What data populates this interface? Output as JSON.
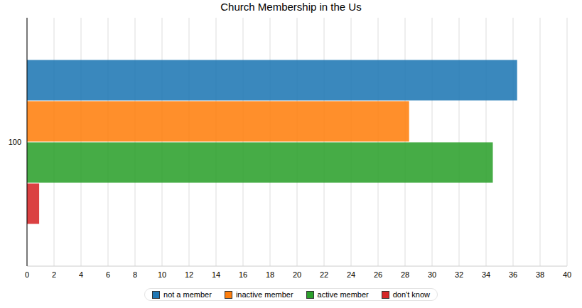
{
  "chart_data": {
    "type": "bar",
    "title": "Church Membership in the Us",
    "orientation": "horizontal",
    "categories": [
      "100"
    ],
    "series": [
      {
        "name": "not a member",
        "color": "#1f77b4",
        "values": [
          36.3
        ]
      },
      {
        "name": "inactive member",
        "color": "#ff7f0e",
        "values": [
          28.3
        ]
      },
      {
        "name": "active member",
        "color": "#2ca02c",
        "values": [
          34.5
        ]
      },
      {
        "name": "don't know",
        "color": "#d62728",
        "values": [
          0.9
        ]
      }
    ],
    "xlim": [
      0,
      40
    ],
    "xticks": [
      0,
      2,
      4,
      6,
      8,
      10,
      12,
      14,
      16,
      18,
      20,
      22,
      24,
      26,
      28,
      30,
      32,
      34,
      36,
      38,
      40
    ],
    "grid": true,
    "legend": "bottom"
  }
}
